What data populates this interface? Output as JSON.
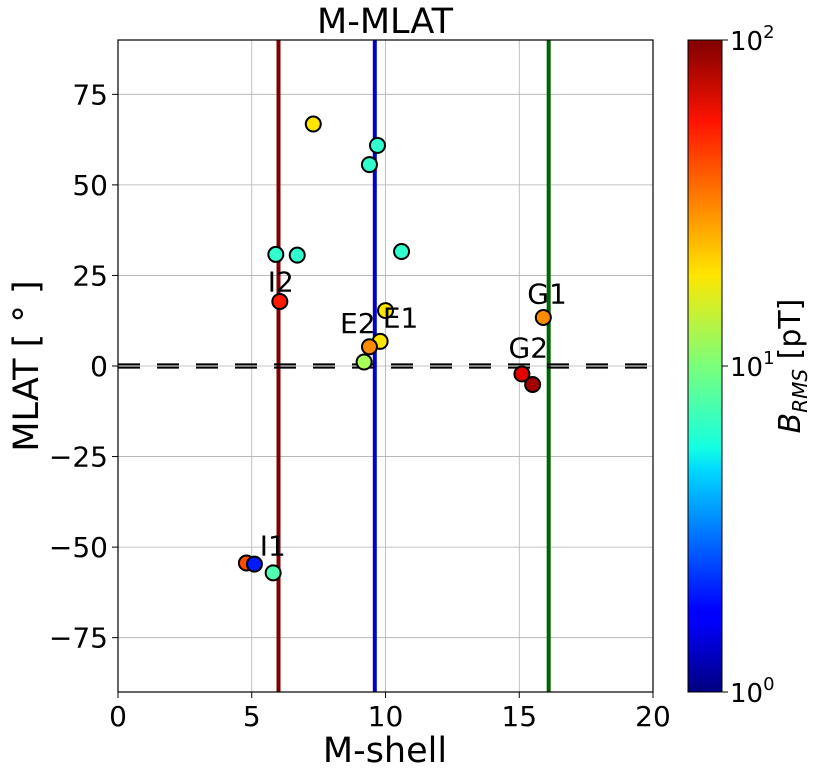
{
  "chart_data": {
    "type": "scatter",
    "title": "M-MLAT",
    "xlabel": "M-shell",
    "ylabel": "MLAT [ ° ]",
    "xlim": [
      0,
      20
    ],
    "ylim": [
      -90,
      90
    ],
    "xticks": [
      "0",
      "5",
      "10",
      "15",
      "20"
    ],
    "yticks": [
      "−75",
      "−50",
      "−25",
      "0",
      "25",
      "50",
      "75"
    ],
    "grid": true,
    "colorbar": {
      "label": "B_RMS [pT]",
      "scale": "log",
      "range": [
        1,
        100
      ],
      "colormap": "jet",
      "ticks": [
        "10^0",
        "10^1",
        "10^2"
      ]
    },
    "vertical_lines": [
      {
        "x": 6.0,
        "color": "#800000"
      },
      {
        "x": 9.6,
        "color": "#0000c8"
      },
      {
        "x": 16.1,
        "color": "#006400"
      }
    ],
    "horizontal_lines": [
      {
        "y": 0,
        "style": "dashed",
        "color": "#000000"
      }
    ],
    "points": [
      {
        "x": 7.3,
        "y": 66.8,
        "b": 20
      },
      {
        "x": 9.7,
        "y": 60.9,
        "b": 7
      },
      {
        "x": 9.4,
        "y": 55.6,
        "b": 7
      },
      {
        "x": 5.9,
        "y": 30.8,
        "b": 7
      },
      {
        "x": 6.7,
        "y": 30.6,
        "b": 7
      },
      {
        "x": 10.6,
        "y": 31.6,
        "b": 7
      },
      {
        "x": 6.05,
        "y": 17.8,
        "b": 50
      },
      {
        "x": 10.0,
        "y": 15.3,
        "b": 20
      },
      {
        "x": 15.9,
        "y": 13.4,
        "b": 30
      },
      {
        "x": 9.8,
        "y": 6.8,
        "b": 20
      },
      {
        "x": 9.4,
        "y": 5.3,
        "b": 30
      },
      {
        "x": 9.2,
        "y": 1.1,
        "b": 12
      },
      {
        "x": 15.1,
        "y": -2.2,
        "b": 65
      },
      {
        "x": 15.5,
        "y": -5.1,
        "b": 85
      },
      {
        "x": 4.8,
        "y": -54.4,
        "b": 40
      },
      {
        "x": 5.1,
        "y": -54.7,
        "b": 2
      },
      {
        "x": 5.8,
        "y": -57.1,
        "b": 8
      }
    ],
    "annotations": [
      {
        "text": "I2",
        "x": 5.6,
        "y": 20.6
      },
      {
        "text": "E2",
        "x": 8.3,
        "y": 9.1
      },
      {
        "text": "E1",
        "x": 9.9,
        "y": 10.6
      },
      {
        "text": "G1",
        "x": 15.3,
        "y": 17.3
      },
      {
        "text": "G2",
        "x": 14.6,
        "y": 2.4
      },
      {
        "text": "I1",
        "x": 5.3,
        "y": -52.3
      }
    ]
  }
}
